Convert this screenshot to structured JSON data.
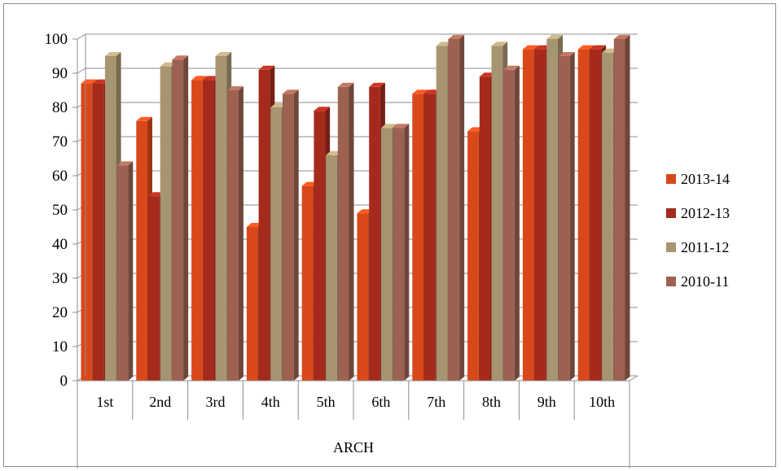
{
  "chart_data": {
    "type": "bar",
    "style": "3d-clustered-column",
    "group_label": "ARCH",
    "categories": [
      "1st",
      "2nd",
      "3rd",
      "4th",
      "5th",
      "6th",
      "7th",
      "8th",
      "9th",
      "10th"
    ],
    "ylim": [
      0,
      100
    ],
    "yticks": [
      0,
      10,
      20,
      30,
      40,
      50,
      60,
      70,
      80,
      90,
      100
    ],
    "grid": true,
    "legend_position": "right",
    "series": [
      {
        "name": "2013-14",
        "color": "#d9481a",
        "values": [
          87,
          76,
          88,
          45,
          57,
          49,
          84,
          73,
          97,
          97
        ]
      },
      {
        "name": "2012-13",
        "color": "#a52a1c",
        "values": [
          87,
          54,
          88,
          91,
          79,
          86,
          84,
          89,
          97,
          97
        ]
      },
      {
        "name": "2011-12",
        "color": "#a79471",
        "values": [
          95,
          92,
          95,
          80,
          66,
          74,
          98,
          98,
          100,
          96
        ]
      },
      {
        "name": "2010-11",
        "color": "#9c6150",
        "values": [
          63,
          94,
          85,
          84,
          86,
          74,
          100,
          91,
          95,
          100
        ]
      }
    ]
  }
}
